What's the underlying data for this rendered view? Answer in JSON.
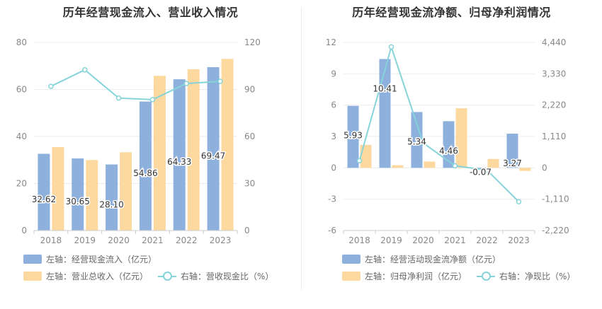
{
  "colors": {
    "bar_primary": "#8eb0dd",
    "bar_secondary": "#fdd9a0",
    "line": "#86d4da",
    "grid": "#ebebeb",
    "axis_text": "#888888",
    "label_text": "#333333"
  },
  "chart_data": [
    {
      "type": "bar",
      "title": "历年经营现金流入、营业收入情况",
      "categories": [
        "2018",
        "2019",
        "2020",
        "2021",
        "2022",
        "2023"
      ],
      "left_axis": {
        "ylim": [
          0,
          80
        ],
        "ticks": [
          0,
          20,
          40,
          60,
          80
        ],
        "tick_labels": [
          "0",
          "20",
          "40",
          "60",
          "80"
        ]
      },
      "right_axis": {
        "ylim": [
          0,
          120
        ],
        "ticks": [
          0,
          30,
          60,
          90,
          120
        ],
        "tick_labels": [
          "0",
          "30",
          "60",
          "90",
          "120"
        ]
      },
      "grid": true,
      "legend_position": "bottom",
      "series": [
        {
          "name": "左轴：经营现金流入（亿元）",
          "kind": "bar",
          "axis": "left",
          "color": "#8eb0dd",
          "values": [
            32.62,
            30.65,
            28.1,
            54.86,
            64.33,
            69.47
          ],
          "data_labels": [
            "32.62",
            "30.65",
            "28.10",
            "54.86",
            "64.33",
            "69.47"
          ]
        },
        {
          "name": "左轴：营业总收入（亿元）",
          "kind": "bar",
          "axis": "left",
          "color": "#fdd9a0",
          "values": [
            35.5,
            30.0,
            33.3,
            65.8,
            68.6,
            73.0
          ]
        },
        {
          "name": "右轴：营收现金比（%）",
          "kind": "line",
          "axis": "right",
          "color": "#86d4da",
          "values": [
            92,
            102.5,
            84.5,
            83.5,
            93.8,
            95.2
          ]
        }
      ]
    },
    {
      "type": "bar",
      "title": "历年经营现金流净额、归母净利润情况",
      "categories": [
        "2018",
        "2019",
        "2020",
        "2021",
        "2022",
        "2023"
      ],
      "left_axis": {
        "ylim": [
          -6,
          12
        ],
        "ticks": [
          -6,
          -3,
          0,
          3,
          6,
          9,
          12
        ],
        "tick_labels": [
          "-6",
          "-3",
          "0",
          "3",
          "6",
          "9",
          "12"
        ]
      },
      "right_axis": {
        "ylim": [
          -2220,
          4440
        ],
        "ticks": [
          -2220,
          -1110,
          0,
          1110,
          2220,
          3330,
          4440
        ],
        "tick_labels": [
          "-2,220",
          "-1,110",
          "0",
          "1,110",
          "2,220",
          "3,330",
          "4,440"
        ]
      },
      "grid": true,
      "legend_position": "bottom",
      "series": [
        {
          "name": "左轴：经营活动现金流净额（亿元）",
          "kind": "bar",
          "axis": "left",
          "color": "#8eb0dd",
          "values": [
            5.93,
            10.41,
            5.34,
            4.46,
            -0.07,
            3.27
          ],
          "data_labels": [
            "5.93",
            "10.41",
            "5.34",
            "4.46",
            "-0.07",
            "3.27"
          ]
        },
        {
          "name": "左轴：归母净利润（亿元）",
          "kind": "bar",
          "axis": "left",
          "color": "#fdd9a0",
          "values": [
            2.2,
            0.25,
            0.6,
            5.7,
            0.85,
            -0.3
          ]
        },
        {
          "name": "右轴：净现比（%）",
          "kind": "line",
          "axis": "right",
          "color": "#86d4da",
          "values": [
            250,
            4280,
            880,
            70,
            -80,
            -1200
          ]
        }
      ]
    }
  ]
}
